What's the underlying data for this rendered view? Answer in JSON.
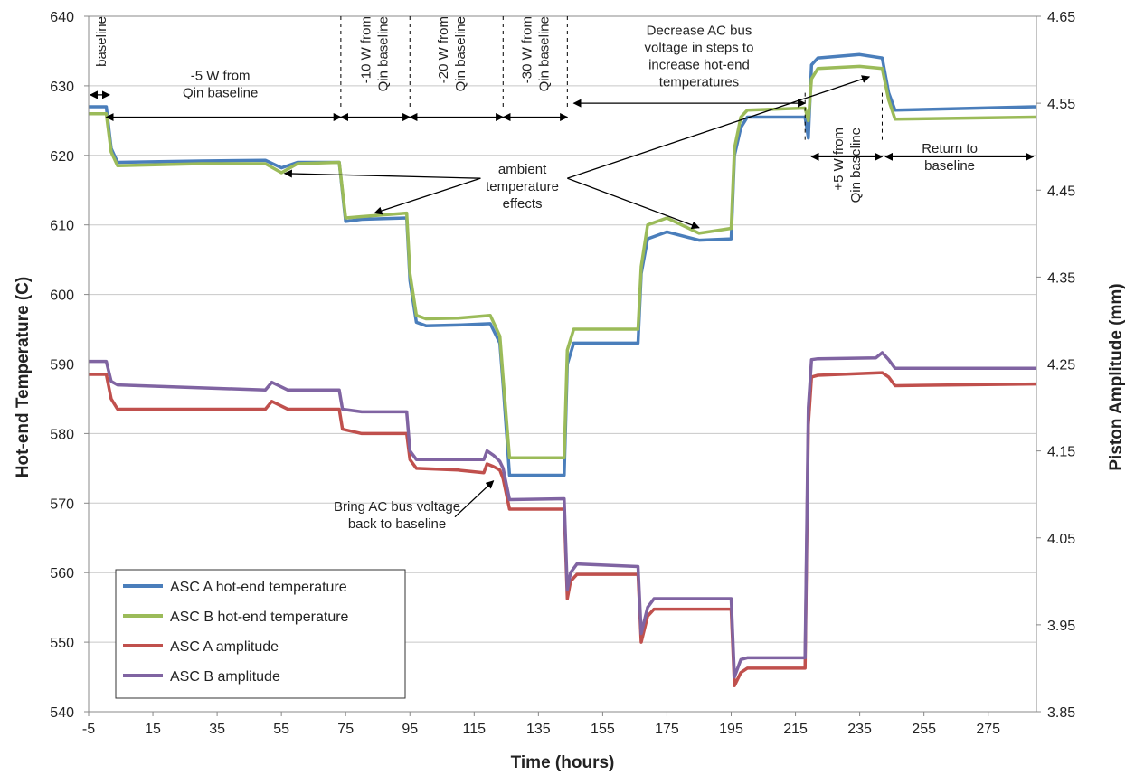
{
  "chart_data": {
    "type": "line",
    "xlabel": "Time (hours)",
    "ylabel": "Hot-end Temperature (C)",
    "y2label": "Piston Amplitude (mm)",
    "xlim": [
      -5,
      290
    ],
    "ylim": [
      540,
      640
    ],
    "y2lim": [
      3.85,
      4.65
    ],
    "xticks": [
      "-5",
      "15",
      "35",
      "55",
      "75",
      "95",
      "115",
      "135",
      "155",
      "175",
      "195",
      "215",
      "235",
      "255",
      "275"
    ],
    "yticks": [
      "540",
      "550",
      "560",
      "570",
      "580",
      "590",
      "600",
      "610",
      "620",
      "630",
      "640"
    ],
    "y2ticks": [
      "3.85",
      "3.95",
      "4.05",
      "4.15",
      "4.25",
      "4.35",
      "4.45",
      "4.55",
      "4.65"
    ],
    "grid": "horizontal",
    "legend": "bottom-left",
    "series": [
      {
        "name": "ASC A hot-end temperature",
        "axis": "left",
        "color": "#4a7ebb",
        "x": [
          -5,
          0.5,
          2,
          4,
          30,
          50,
          55,
          60,
          73,
          75,
          80,
          94,
          95,
          97,
          100,
          110,
          120,
          123,
          124,
          126,
          143,
          144,
          146,
          166,
          167,
          169,
          175,
          185,
          195,
          196,
          198,
          200,
          218,
          219,
          220,
          222,
          235,
          242,
          244,
          246,
          290
        ],
        "y": [
          627,
          627,
          621,
          619,
          619.2,
          619.3,
          618.2,
          619,
          619,
          610.5,
          610.8,
          611,
          602,
          596,
          595.5,
          595.6,
          595.8,
          593,
          587,
          574,
          574,
          590,
          593,
          593,
          603,
          608,
          609,
          607.8,
          608,
          620,
          624,
          625.5,
          625.5,
          622.5,
          633,
          634,
          634.5,
          634,
          629,
          626.5,
          627
        ]
      },
      {
        "name": "ASC B hot-end temperature",
        "axis": "left",
        "color": "#9bbb59",
        "x": [
          -5,
          0.5,
          2,
          4,
          30,
          50,
          55,
          60,
          73,
          75,
          80,
          94,
          95,
          97,
          100,
          110,
          120,
          123,
          124,
          126,
          143,
          144,
          146,
          166,
          167,
          169,
          175,
          185,
          195,
          196,
          198,
          200,
          218,
          219,
          220,
          222,
          235,
          242,
          244,
          246,
          290
        ],
        "y": [
          626,
          626,
          620.5,
          618.5,
          618.8,
          618.8,
          617.5,
          618.8,
          619,
          611,
          611.2,
          611.7,
          603,
          597,
          596.5,
          596.6,
          597,
          594,
          588,
          576.5,
          576.5,
          592,
          595,
          595,
          604,
          610,
          611,
          608.8,
          609.5,
          621,
          625.5,
          626.5,
          626.8,
          625,
          631,
          632.5,
          632.8,
          632.5,
          628,
          625.2,
          625.5
        ]
      },
      {
        "name": "ASC A amplitude",
        "axis": "right",
        "color": "#c0504d",
        "x": [
          -5,
          0.5,
          2,
          4,
          50,
          52,
          57,
          73,
          74,
          80,
          94,
          95,
          97,
          110,
          118,
          119,
          121,
          123,
          124,
          126,
          143,
          144,
          145,
          147,
          166,
          167,
          169,
          171,
          195,
          196,
          198,
          200,
          218,
          219,
          220,
          222,
          242,
          244,
          246,
          290
        ],
        "y": [
          4.238,
          4.238,
          4.21,
          4.198,
          4.198,
          4.207,
          4.198,
          4.198,
          4.175,
          4.17,
          4.17,
          4.14,
          4.13,
          4.128,
          4.125,
          4.135,
          4.132,
          4.128,
          4.118,
          4.083,
          4.083,
          3.98,
          4.0,
          4.008,
          4.008,
          3.93,
          3.96,
          3.968,
          3.968,
          3.88,
          3.895,
          3.9,
          3.9,
          4.18,
          4.235,
          4.237,
          4.24,
          4.235,
          4.225,
          4.227
        ]
      },
      {
        "name": "ASC B amplitude",
        "axis": "right",
        "color": "#8064a2",
        "x": [
          -5,
          0.5,
          2,
          4,
          50,
          52,
          57,
          73,
          74,
          80,
          94,
          95,
          97,
          110,
          118,
          119,
          121,
          123,
          124,
          126,
          143,
          144,
          145,
          147,
          166,
          167,
          169,
          171,
          195,
          196,
          198,
          200,
          218,
          219,
          220,
          222,
          240,
          242,
          244,
          246,
          290
        ],
        "y": [
          4.253,
          4.253,
          4.23,
          4.226,
          4.22,
          4.229,
          4.22,
          4.22,
          4.198,
          4.195,
          4.195,
          4.15,
          4.14,
          4.14,
          4.14,
          4.15,
          4.145,
          4.138,
          4.13,
          4.094,
          4.095,
          3.99,
          4.01,
          4.02,
          4.017,
          3.94,
          3.97,
          3.98,
          3.98,
          3.89,
          3.91,
          3.912,
          3.912,
          4.2,
          4.255,
          4.256,
          4.257,
          4.263,
          4.255,
          4.245,
          4.245
        ]
      }
    ],
    "annotations": [
      {
        "lines": [
          "baseline"
        ],
        "rotate": true,
        "x": -1,
        "y": 640
      },
      {
        "lines": [
          "-5 W from",
          "Qin baseline"
        ],
        "x": 36,
        "y": 631.5
      },
      {
        "lines": [
          "-10 W from",
          "Qin baseline"
        ],
        "rotate": true,
        "x": 84,
        "y": 640
      },
      {
        "lines": [
          "-20 W from",
          "Qin baseline"
        ],
        "rotate": true,
        "x": 108,
        "y": 640
      },
      {
        "lines": [
          "-30 W from",
          "Qin baseline"
        ],
        "rotate": true,
        "x": 134,
        "y": 640
      },
      {
        "lines": [
          "Decrease AC bus",
          "voltage in steps to",
          "increase hot-end",
          "temperatures"
        ],
        "x": 185,
        "y": 638
      },
      {
        "lines": [
          "ambient",
          "temperature",
          "effects"
        ],
        "x": 130,
        "y": 618
      },
      {
        "lines": [
          "+5 W from",
          "Qin baseline"
        ],
        "rotate": true,
        "x": 231,
        "y": 624
      },
      {
        "lines": [
          "Return to",
          "baseline"
        ],
        "x": 263,
        "y": 621
      },
      {
        "lines": [
          "Bring AC bus voltage",
          "back to baseline"
        ],
        "x": 91,
        "y": 569.5
      }
    ]
  }
}
